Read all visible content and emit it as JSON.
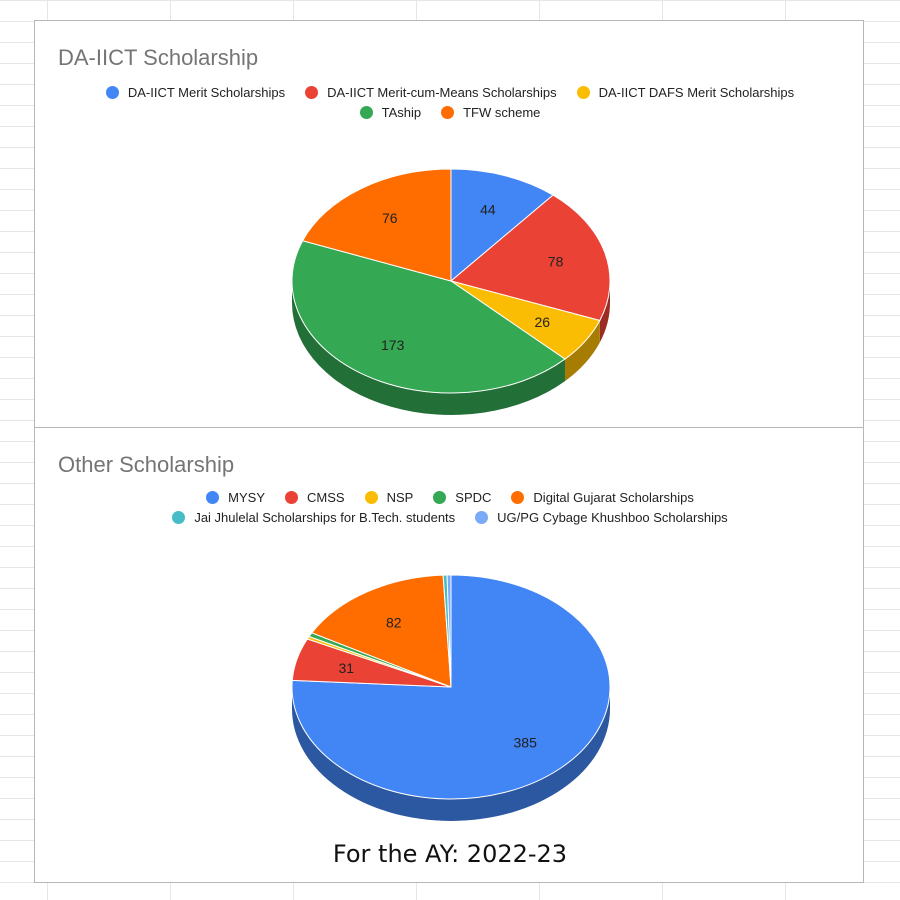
{
  "chart_data": [
    {
      "type": "pie",
      "title": "DA-IICT Scholarship",
      "three_d": true,
      "legend_position": "top",
      "slices": [
        {
          "name": "DA-IICT Merit Scholarships",
          "value": 44,
          "color": "#4285F4"
        },
        {
          "name": "DA-IICT Merit-cum-Means Scholarships",
          "value": 78,
          "color": "#EA4335"
        },
        {
          "name": "DA-IICT DAFS Merit Scholarships",
          "value": 26,
          "color": "#FBBC04"
        },
        {
          "name": "TAship",
          "value": 173,
          "color": "#34A853"
        },
        {
          "name": "TFW scheme",
          "value": 76,
          "color": "#FF6D01"
        }
      ]
    },
    {
      "type": "pie",
      "title": "Other Scholarship",
      "three_d": true,
      "legend_position": "top",
      "slices": [
        {
          "name": "MYSY",
          "value": 385,
          "color": "#4285F4"
        },
        {
          "name": "CMSS",
          "value": 31,
          "color": "#EA4335"
        },
        {
          "name": "NSP",
          "value": 2,
          "color": "#FBBC04"
        },
        {
          "name": "SPDC",
          "value": 3,
          "color": "#34A853"
        },
        {
          "name": "Digital Gujarat Scholarships",
          "value": 82,
          "color": "#FF6D01"
        },
        {
          "name": "Jai Jhulelal Scholarships for B.Tech. students",
          "value": 2,
          "color": "#46BDC6"
        },
        {
          "name": "UG/PG Cybage Khushboo Scholarships",
          "value": 2,
          "color": "#7BAAF7"
        }
      ]
    }
  ],
  "footer": "For the AY: 2022-23"
}
